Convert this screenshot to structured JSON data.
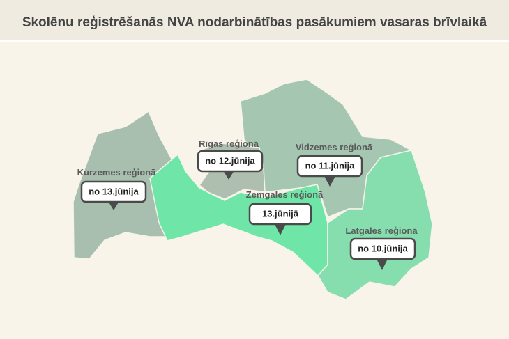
{
  "title": "Skolēnu reģistrēšanās NVA nodarbinātības pasākumiem vasaras brīvlaikā",
  "regions": [
    {
      "name": "Kurzemes reģionā",
      "date": "no 13.jūnija"
    },
    {
      "name": "Rīgas reģionā",
      "date": "no 12.jūnija"
    },
    {
      "name": "Vidzemes reģionā",
      "date": "no 11.jūnija"
    },
    {
      "name": "Zemgales reģionā",
      "date": "13.jūnijā"
    },
    {
      "name": "Latgales reģionā",
      "date": "no 10.jūnija"
    }
  ]
}
